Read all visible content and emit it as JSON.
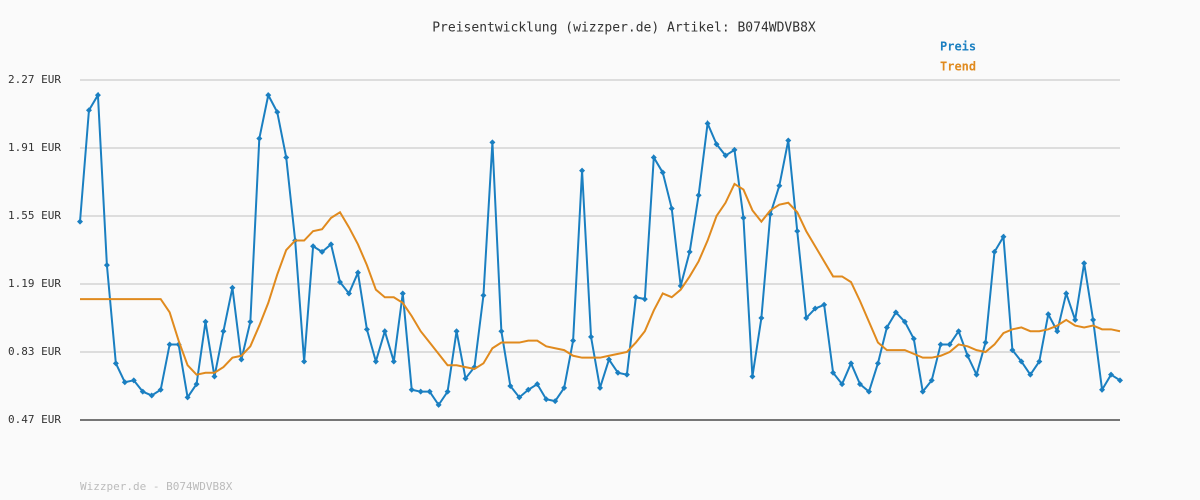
{
  "chart_data": {
    "type": "line",
    "title": "Preisentwicklung (wizzper.de) Artikel: B074WDVB8X",
    "footer": "Wizzper.de - B074WDVB8X",
    "legend": "top-right",
    "grid": true,
    "ylim": [
      0.47,
      2.27
    ],
    "yticks": [
      {
        "value": 0.47,
        "label": "0.47 EUR"
      },
      {
        "value": 0.83,
        "label": "0.83 EUR"
      },
      {
        "value": 1.19,
        "label": "1.19 EUR"
      },
      {
        "value": 1.55,
        "label": "1.55 EUR"
      },
      {
        "value": 1.91,
        "label": "1.91 EUR"
      },
      {
        "value": 2.27,
        "label": "2.27 EUR"
      }
    ],
    "series": [
      {
        "name": "Preis",
        "color": "#1a7fc1",
        "markers": true,
        "values": [
          1.52,
          2.11,
          2.19,
          1.29,
          0.77,
          0.67,
          0.68,
          0.62,
          0.6,
          0.63,
          0.87,
          0.87,
          0.59,
          0.66,
          0.99,
          0.7,
          0.94,
          1.17,
          0.79,
          0.99,
          1.96,
          2.19,
          2.1,
          1.86,
          1.42,
          0.78,
          1.39,
          1.36,
          1.4,
          1.2,
          1.14,
          1.25,
          0.95,
          0.78,
          0.94,
          0.78,
          1.14,
          0.63,
          0.62,
          0.62,
          0.55,
          0.62,
          0.94,
          0.69,
          0.75,
          1.13,
          1.94,
          0.94,
          0.65,
          0.59,
          0.63,
          0.66,
          0.58,
          0.57,
          0.64,
          0.89,
          1.79,
          0.91,
          0.64,
          0.79,
          0.72,
          0.71,
          1.12,
          1.11,
          1.86,
          1.78,
          1.59,
          1.18,
          1.36,
          1.66,
          2.04,
          1.93,
          1.87,
          1.9,
          1.54,
          0.7,
          1.01,
          1.56,
          1.71,
          1.95,
          1.47,
          1.01,
          1.06,
          1.08,
          0.72,
          0.66,
          0.77,
          0.66,
          0.62,
          0.77,
          0.96,
          1.04,
          0.99,
          0.9,
          0.62,
          0.68,
          0.87,
          0.87,
          0.94,
          0.81,
          0.71,
          0.88,
          1.36,
          1.44,
          0.84,
          0.78,
          0.71,
          0.78,
          1.03,
          0.94,
          1.14,
          1.0,
          1.3,
          1.0,
          0.63,
          0.71,
          0.68
        ]
      },
      {
        "name": "Trend",
        "color": "#e08a1e",
        "markers": false,
        "values": [
          1.11,
          1.11,
          1.11,
          1.11,
          1.11,
          1.11,
          1.11,
          1.11,
          1.11,
          1.11,
          1.04,
          0.89,
          0.76,
          0.71,
          0.72,
          0.72,
          0.75,
          0.8,
          0.81,
          0.86,
          0.97,
          1.09,
          1.24,
          1.37,
          1.42,
          1.42,
          1.47,
          1.48,
          1.54,
          1.57,
          1.49,
          1.4,
          1.29,
          1.16,
          1.12,
          1.12,
          1.09,
          1.02,
          0.94,
          0.88,
          0.82,
          0.76,
          0.76,
          0.75,
          0.74,
          0.77,
          0.85,
          0.88,
          0.88,
          0.88,
          0.89,
          0.89,
          0.86,
          0.85,
          0.84,
          0.81,
          0.8,
          0.8,
          0.8,
          0.81,
          0.82,
          0.83,
          0.88,
          0.94,
          1.05,
          1.14,
          1.12,
          1.16,
          1.23,
          1.31,
          1.42,
          1.55,
          1.62,
          1.72,
          1.69,
          1.58,
          1.52,
          1.58,
          1.61,
          1.62,
          1.57,
          1.47,
          1.39,
          1.31,
          1.23,
          1.23,
          1.2,
          1.1,
          0.99,
          0.88,
          0.84,
          0.84,
          0.84,
          0.82,
          0.8,
          0.8,
          0.81,
          0.83,
          0.87,
          0.86,
          0.84,
          0.83,
          0.87,
          0.93,
          0.95,
          0.96,
          0.94,
          0.94,
          0.95,
          0.97,
          1.0,
          0.97,
          0.96,
          0.97,
          0.95,
          0.95,
          0.94
        ]
      }
    ]
  }
}
